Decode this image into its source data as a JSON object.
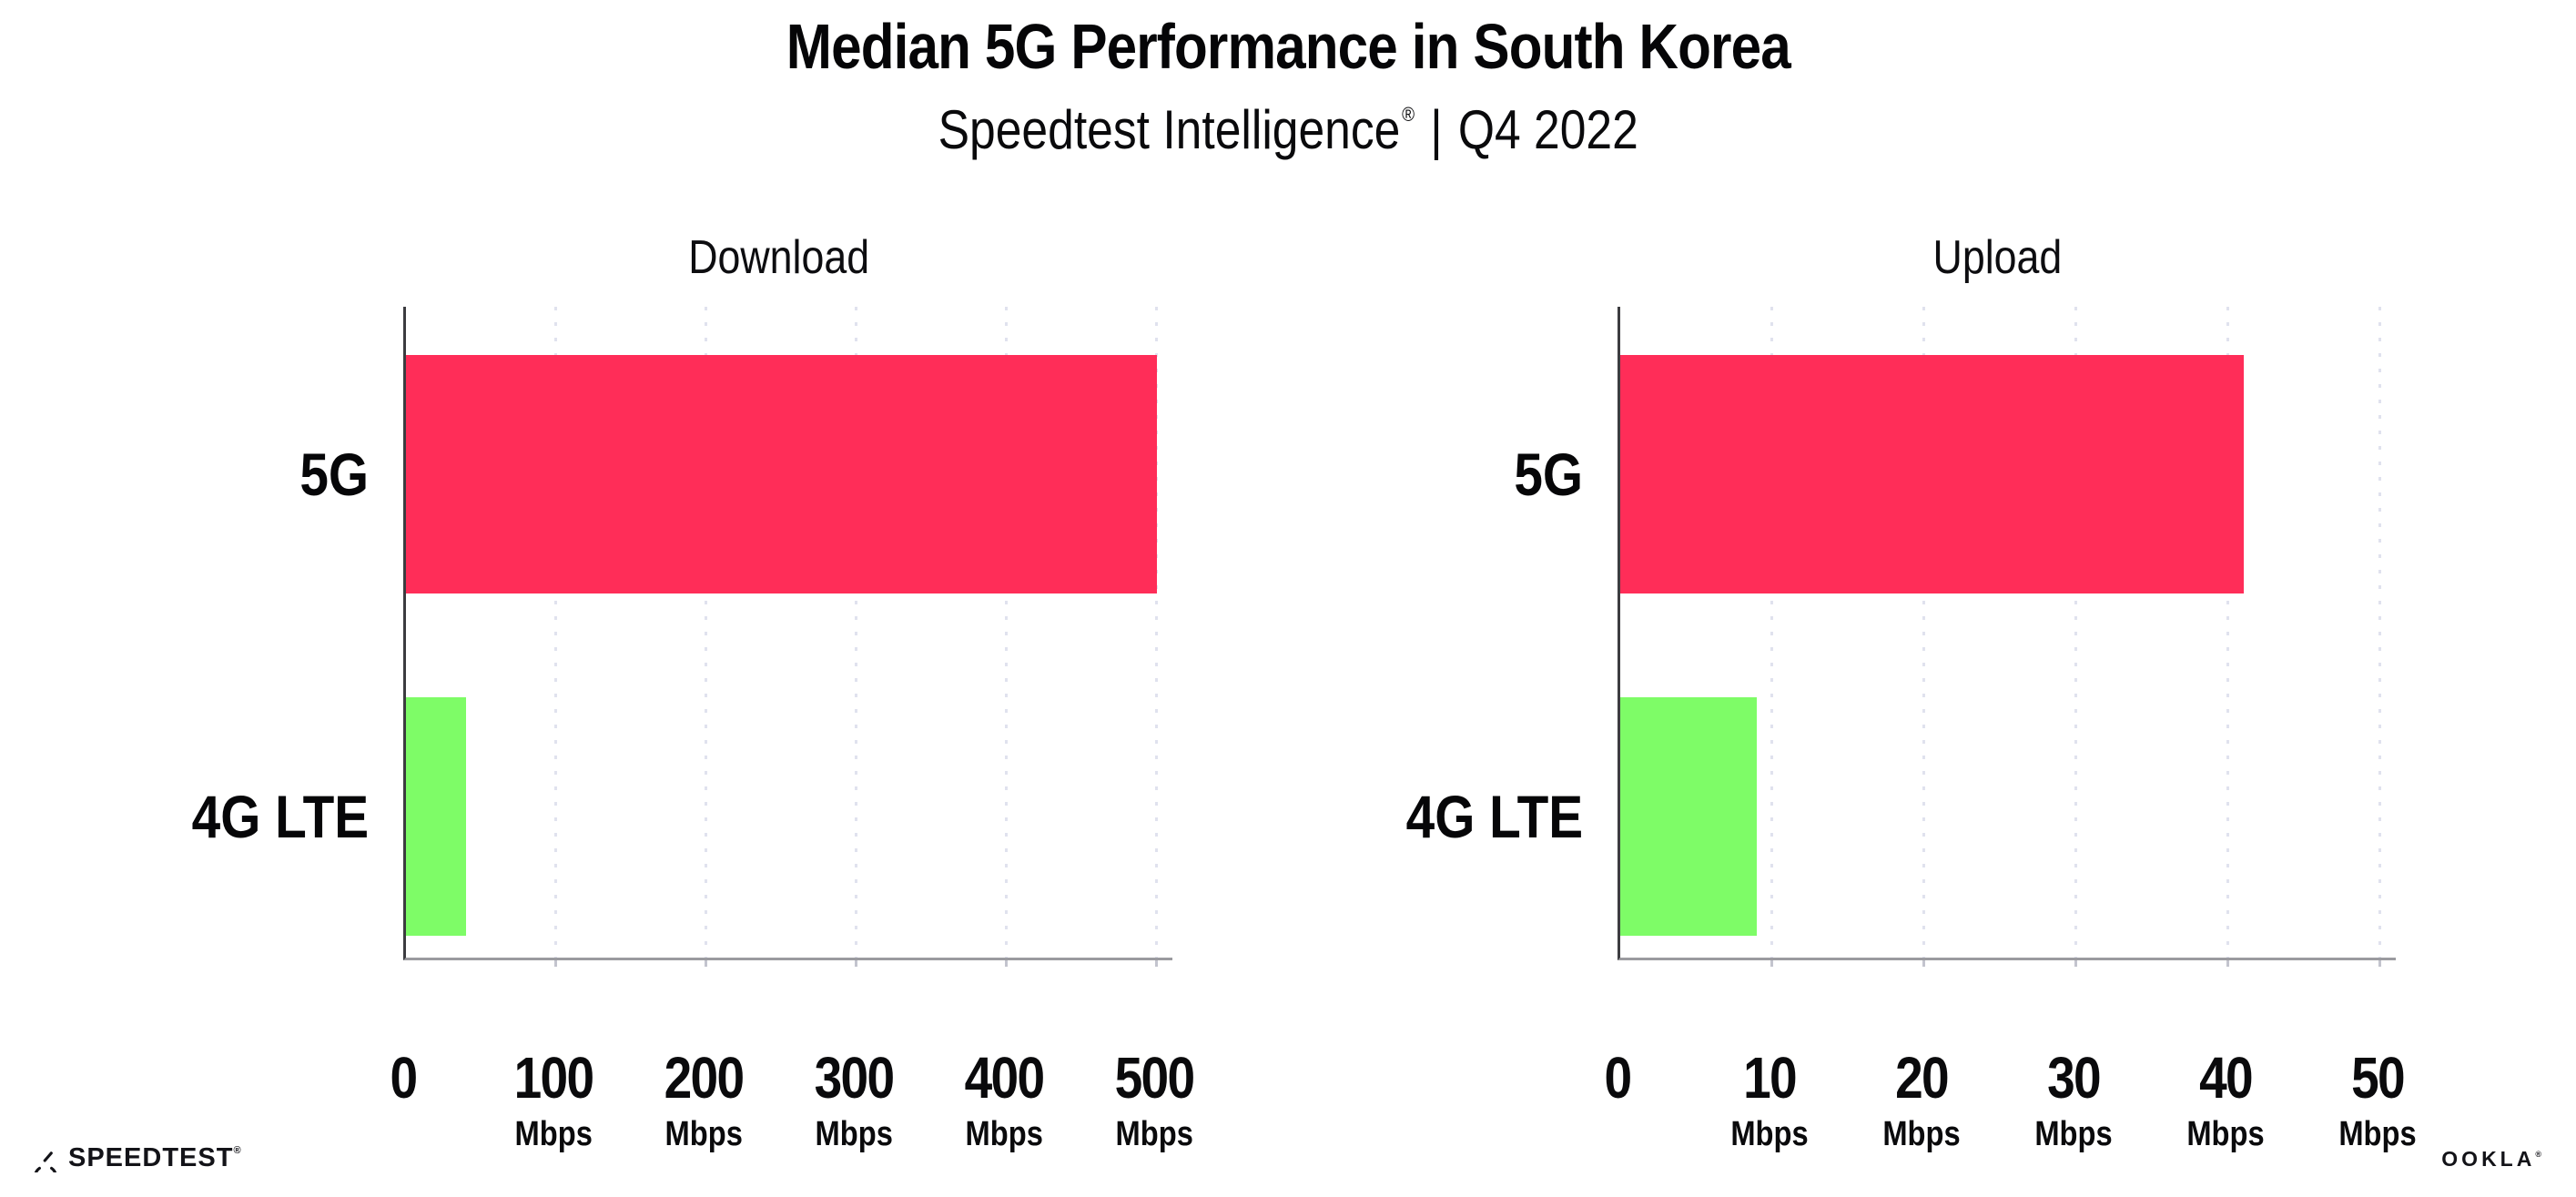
{
  "header": {
    "title": "Median 5G Performance in South Korea",
    "subtitle": {
      "brand": "Speedtest Intelligence",
      "registered_mark": "®",
      "separator": "|",
      "period": "Q4 2022"
    }
  },
  "chart_data": [
    {
      "type": "bar",
      "orientation": "horizontal",
      "title": "Download",
      "categories": [
        "5G",
        "4G LTE"
      ],
      "values": [
        500,
        40
      ],
      "unit": "Mbps",
      "xlabel": "",
      "ylabel": "",
      "xlim": [
        0,
        500
      ],
      "xticks": [
        0,
        100,
        200,
        300,
        400,
        500
      ],
      "tick_unit_label": "Mbps",
      "bar_colors": [
        "#FF2D58",
        "#7EFC67"
      ],
      "grid": "vertical dotted major gridlines",
      "legend": "none"
    },
    {
      "type": "bar",
      "orientation": "horizontal",
      "title": "Upload",
      "categories": [
        "5G",
        "4G LTE"
      ],
      "values": [
        41,
        9
      ],
      "unit": "Mbps",
      "xlabel": "",
      "ylabel": "",
      "xlim": [
        0,
        50
      ],
      "xticks": [
        0,
        10,
        20,
        30,
        40,
        50
      ],
      "tick_unit_label": "Mbps",
      "bar_colors": [
        "#FF2D58",
        "#7EFC67"
      ],
      "grid": "vertical dotted major gridlines",
      "legend": "none"
    }
  ],
  "footer": {
    "speedtest": {
      "text": "SPEEDTEST",
      "mark": "®"
    },
    "ookla": {
      "text": "OOKLA",
      "mark": "®"
    }
  },
  "colors": {
    "bar_5g": "#FF2D58",
    "bar_4g_lte": "#7EFC67",
    "text": "#0b0b0f",
    "background": "#ffffff"
  }
}
